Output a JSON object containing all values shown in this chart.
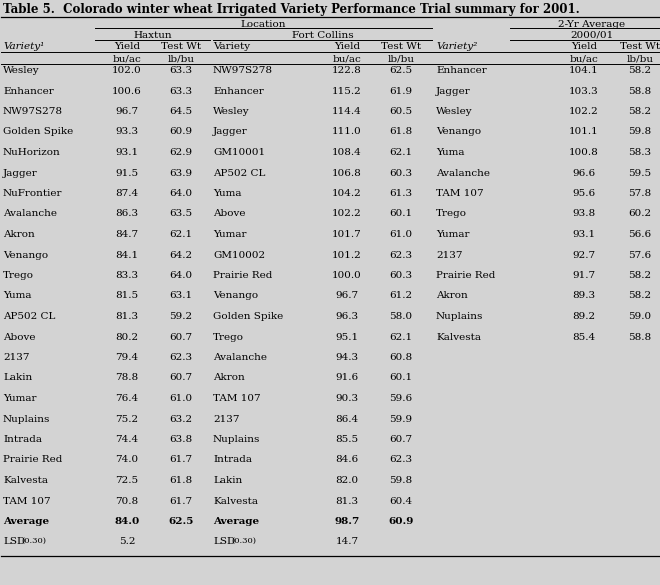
{
  "title": "Table 5.  Colorado winter wheat Irrigated Variety Performance Trial summary for 2001.",
  "header_location": "Location",
  "header_2yr": "2-Yr Average",
  "header_haxtun": "Haxtun",
  "header_fortcollins": "Fort Collins",
  "header_2000_01": "2000/01",
  "col_variety1_label": "Variety¹",
  "col_variety2_label": "Variety²",
  "col_yield": "Yield",
  "col_testwt": "Test Wt",
  "col_variety_mid": "Variety",
  "unit_bu_ac": "bu/ac",
  "unit_lb_bu": "lb/bu",
  "haxtun_data": [
    [
      "Wesley",
      "102.0",
      "63.3"
    ],
    [
      "Enhancer",
      "100.6",
      "63.3"
    ],
    [
      "NW97S278",
      "96.7",
      "64.5"
    ],
    [
      "Golden Spike",
      "93.3",
      "60.9"
    ],
    [
      "NuHorizon",
      "93.1",
      "62.9"
    ],
    [
      "Jagger",
      "91.5",
      "63.9"
    ],
    [
      "NuFrontier",
      "87.4",
      "64.0"
    ],
    [
      "Avalanche",
      "86.3",
      "63.5"
    ],
    [
      "Akron",
      "84.7",
      "62.1"
    ],
    [
      "Venango",
      "84.1",
      "64.2"
    ],
    [
      "Trego",
      "83.3",
      "64.0"
    ],
    [
      "Yuma",
      "81.5",
      "63.1"
    ],
    [
      "AP502 CL",
      "81.3",
      "59.2"
    ],
    [
      "Above",
      "80.2",
      "60.7"
    ],
    [
      "2137",
      "79.4",
      "62.3"
    ],
    [
      "Lakin",
      "78.8",
      "60.7"
    ],
    [
      "Yumar",
      "76.4",
      "61.0"
    ],
    [
      "Nuplains",
      "75.2",
      "63.2"
    ],
    [
      "Intrada",
      "74.4",
      "63.8"
    ],
    [
      "Prairie Red",
      "74.0",
      "61.7"
    ],
    [
      "Kalvesta",
      "72.5",
      "61.8"
    ],
    [
      "TAM 107",
      "70.8",
      "61.7"
    ],
    [
      "Average",
      "84.0",
      "62.5"
    ],
    [
      "LSD",
      "5.2",
      null
    ]
  ],
  "fortcollins_data": [
    [
      "NW97S278",
      "122.8",
      "62.5"
    ],
    [
      "Enhancer",
      "115.2",
      "61.9"
    ],
    [
      "Wesley",
      "114.4",
      "60.5"
    ],
    [
      "Jagger",
      "111.0",
      "61.8"
    ],
    [
      "GM10001",
      "108.4",
      "62.1"
    ],
    [
      "AP502 CL",
      "106.8",
      "60.3"
    ],
    [
      "Yuma",
      "104.2",
      "61.3"
    ],
    [
      "Above",
      "102.2",
      "60.1"
    ],
    [
      "Yumar",
      "101.7",
      "61.0"
    ],
    [
      "GM10002",
      "101.2",
      "62.3"
    ],
    [
      "Prairie Red",
      "100.0",
      "60.3"
    ],
    [
      "Venango",
      "96.7",
      "61.2"
    ],
    [
      "Golden Spike",
      "96.3",
      "58.0"
    ],
    [
      "Trego",
      "95.1",
      "62.1"
    ],
    [
      "Avalanche",
      "94.3",
      "60.8"
    ],
    [
      "Akron",
      "91.6",
      "60.1"
    ],
    [
      "TAM 107",
      "90.3",
      "59.6"
    ],
    [
      "2137",
      "86.4",
      "59.9"
    ],
    [
      "Nuplains",
      "85.5",
      "60.7"
    ],
    [
      "Intrada",
      "84.6",
      "62.3"
    ],
    [
      "Lakin",
      "82.0",
      "59.8"
    ],
    [
      "Kalvesta",
      "81.3",
      "60.4"
    ],
    [
      "Average",
      "98.7",
      "60.9"
    ],
    [
      "LSD",
      "14.7",
      null
    ]
  ],
  "avg2yr_data": [
    [
      "Enhancer",
      "104.1",
      "58.2"
    ],
    [
      "Jagger",
      "103.3",
      "58.8"
    ],
    [
      "Wesley",
      "102.2",
      "58.2"
    ],
    [
      "Venango",
      "101.1",
      "59.8"
    ],
    [
      "Yuma",
      "100.8",
      "58.3"
    ],
    [
      "Avalanche",
      "96.6",
      "59.5"
    ],
    [
      "TAM 107",
      "95.6",
      "57.8"
    ],
    [
      "Trego",
      "93.8",
      "60.2"
    ],
    [
      "Yumar",
      "93.1",
      "56.6"
    ],
    [
      "2137",
      "92.7",
      "57.6"
    ],
    [
      "Prairie Red",
      "91.7",
      "58.2"
    ],
    [
      "Akron",
      "89.3",
      "58.2"
    ],
    [
      "Nuplains",
      "89.2",
      "59.0"
    ],
    [
      "Kalvesta",
      "85.4",
      "58.8"
    ]
  ],
  "bg_color": "#d3d3d3",
  "title_fontsize": 8.5,
  "table_fontsize": 7.5
}
